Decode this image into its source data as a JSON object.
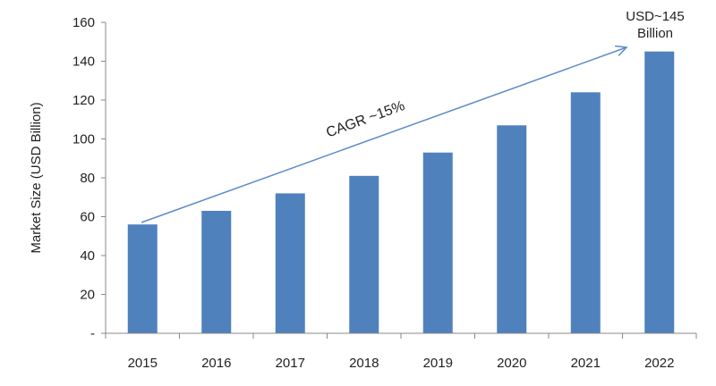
{
  "chart_data": {
    "type": "bar",
    "title": "",
    "xlabel": "",
    "ylabel": "Market Size (USD Billion)",
    "categories": [
      "2015",
      "2016",
      "2017",
      "2018",
      "2019",
      "2020",
      "2021",
      "2022"
    ],
    "values": [
      56,
      63,
      72,
      81,
      93,
      107,
      124,
      145
    ],
    "ylim": [
      0,
      160
    ],
    "yticks": [
      0,
      20,
      40,
      60,
      80,
      100,
      120,
      140,
      160
    ],
    "ytick_labels": [
      "-",
      "20",
      "40",
      "60",
      "80",
      "100",
      "120",
      "140",
      "160"
    ],
    "grid": false,
    "bar_color": "#4F81BD",
    "arrow_color": "#5B8BC9",
    "annotations": {
      "cagr": "CAGR ~15%",
      "final_line1": "USD~145",
      "final_line2": "Billion"
    }
  }
}
